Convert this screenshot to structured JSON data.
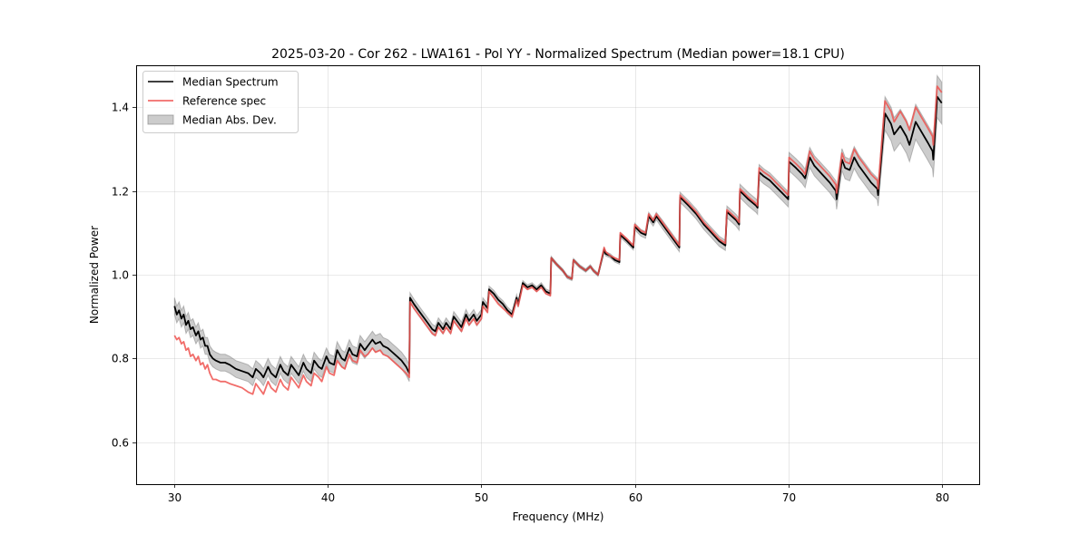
{
  "chart_data": {
    "type": "line",
    "title": "2025-03-20 - Cor 262 - LWA161 - Pol YY - Normalized Spectrum (Median power=18.1 CPU)",
    "xlabel": "Frequency (MHz)",
    "ylabel": "Normalized Power",
    "xlim": [
      27.5,
      82.5
    ],
    "ylim": [
      0.5,
      1.5
    ],
    "xticks": [
      30,
      40,
      50,
      60,
      70,
      80
    ],
    "xtick_labels": [
      "30",
      "40",
      "50",
      "60",
      "70",
      "80"
    ],
    "yticks": [
      0.6,
      0.8,
      1.0,
      1.2,
      1.4
    ],
    "ytick_labels": [
      "0.6",
      "0.8",
      "1.0",
      "1.2",
      "1.4"
    ],
    "grid": true,
    "legend": {
      "placement": "top-left",
      "entries": [
        {
          "label": "Median Spectrum",
          "kind": "line",
          "color": "#000000"
        },
        {
          "label": "Reference spec",
          "kind": "line",
          "color": "#e8393b"
        },
        {
          "label": "Median Abs. Dev.",
          "kind": "band",
          "color": "#b0b0b0"
        }
      ]
    },
    "colors": {
      "median": "#000000",
      "reference": "#ef5350",
      "band_fill": "#000000",
      "band_edge": "#7f7f7f"
    },
    "x": [
      30.0,
      30.15,
      30.3,
      30.45,
      30.6,
      30.75,
      30.9,
      31.05,
      31.2,
      31.4,
      31.55,
      31.7,
      31.85,
      32.0,
      32.15,
      32.3,
      32.5,
      32.7,
      33.0,
      33.3,
      33.6,
      34.0,
      34.4,
      34.8,
      35.1,
      35.3,
      35.6,
      35.8,
      36.1,
      36.3,
      36.6,
      36.9,
      37.1,
      37.4,
      37.6,
      37.9,
      38.1,
      38.4,
      38.6,
      38.9,
      39.1,
      39.4,
      39.6,
      39.9,
      40.1,
      40.4,
      40.6,
      40.9,
      41.1,
      41.4,
      41.6,
      41.9,
      42.1,
      42.4,
      42.6,
      42.9,
      43.1,
      43.4,
      43.6,
      43.9,
      44.2,
      44.5,
      44.8,
      45.1,
      45.3,
      45.35,
      45.6,
      45.9,
      46.2,
      46.5,
      46.8,
      47.0,
      47.2,
      47.5,
      47.7,
      48.0,
      48.2,
      48.5,
      48.7,
      49.0,
      49.2,
      49.5,
      49.7,
      50.0,
      50.1,
      50.4,
      50.5,
      50.8,
      51.1,
      51.4,
      51.7,
      52.0,
      52.3,
      52.4,
      52.7,
      53.0,
      53.3,
      53.6,
      53.9,
      54.2,
      54.5,
      54.55,
      54.9,
      55.3,
      55.6,
      55.9,
      56.0,
      56.4,
      56.8,
      57.1,
      57.3,
      57.6,
      58.0,
      58.1,
      58.4,
      58.7,
      59.0,
      59.05,
      59.5,
      59.9,
      60.0,
      60.4,
      60.7,
      60.9,
      61.2,
      61.4,
      61.8,
      62.3,
      62.9,
      62.95,
      63.5,
      64.0,
      64.5,
      65.0,
      65.5,
      65.9,
      66.0,
      66.3,
      66.6,
      66.8,
      66.85,
      67.4,
      67.9,
      68.0,
      68.1,
      68.4,
      68.8,
      69.2,
      69.6,
      70.0,
      70.05,
      70.5,
      70.9,
      71.1,
      71.4,
      71.7,
      72.2,
      72.7,
      73.1,
      73.15,
      73.5,
      73.7,
      74.0,
      74.3,
      74.6,
      75.0,
      75.4,
      75.8,
      75.85,
      76.3,
      76.7,
      76.9,
      77.3,
      77.7,
      77.9,
      78.3,
      78.7,
      79.1,
      79.4,
      79.45,
      79.7,
      80.0
    ],
    "series": [
      {
        "name": "Median Spectrum",
        "values": [
          0.925,
          0.905,
          0.915,
          0.895,
          0.905,
          0.88,
          0.89,
          0.87,
          0.875,
          0.855,
          0.865,
          0.845,
          0.85,
          0.83,
          0.83,
          0.81,
          0.8,
          0.795,
          0.79,
          0.79,
          0.785,
          0.775,
          0.77,
          0.765,
          0.755,
          0.775,
          0.765,
          0.755,
          0.78,
          0.765,
          0.755,
          0.785,
          0.77,
          0.76,
          0.785,
          0.77,
          0.76,
          0.79,
          0.775,
          0.765,
          0.795,
          0.78,
          0.775,
          0.805,
          0.79,
          0.785,
          0.82,
          0.8,
          0.795,
          0.825,
          0.81,
          0.805,
          0.835,
          0.82,
          0.83,
          0.845,
          0.835,
          0.84,
          0.83,
          0.825,
          0.815,
          0.805,
          0.795,
          0.78,
          0.765,
          0.945,
          0.93,
          0.915,
          0.9,
          0.885,
          0.87,
          0.865,
          0.885,
          0.87,
          0.885,
          0.87,
          0.9,
          0.885,
          0.875,
          0.905,
          0.89,
          0.905,
          0.89,
          0.905,
          0.935,
          0.92,
          0.965,
          0.955,
          0.94,
          0.93,
          0.915,
          0.905,
          0.945,
          0.93,
          0.98,
          0.97,
          0.975,
          0.965,
          0.975,
          0.96,
          0.955,
          1.04,
          1.025,
          1.01,
          0.995,
          0.99,
          1.035,
          1.02,
          1.01,
          1.02,
          1.01,
          1.0,
          1.06,
          1.05,
          1.045,
          1.035,
          1.03,
          1.095,
          1.08,
          1.065,
          1.115,
          1.1,
          1.095,
          1.14,
          1.125,
          1.14,
          1.12,
          1.095,
          1.065,
          1.185,
          1.165,
          1.145,
          1.12,
          1.1,
          1.08,
          1.07,
          1.15,
          1.14,
          1.13,
          1.12,
          1.2,
          1.18,
          1.165,
          1.16,
          1.245,
          1.235,
          1.225,
          1.21,
          1.195,
          1.18,
          1.27,
          1.255,
          1.24,
          1.23,
          1.28,
          1.26,
          1.24,
          1.22,
          1.2,
          1.18,
          1.275,
          1.255,
          1.25,
          1.28,
          1.26,
          1.24,
          1.22,
          1.205,
          1.19,
          1.385,
          1.36,
          1.335,
          1.355,
          1.33,
          1.31,
          1.365,
          1.34,
          1.315,
          1.295,
          1.275,
          1.425,
          1.41,
          1.38
        ]
      },
      {
        "name": "Reference spec",
        "values": [
          0.855,
          0.845,
          0.85,
          0.835,
          0.84,
          0.82,
          0.825,
          0.805,
          0.81,
          0.795,
          0.805,
          0.785,
          0.79,
          0.775,
          0.785,
          0.765,
          0.75,
          0.75,
          0.745,
          0.745,
          0.74,
          0.735,
          0.73,
          0.72,
          0.715,
          0.74,
          0.725,
          0.715,
          0.745,
          0.73,
          0.72,
          0.75,
          0.735,
          0.725,
          0.755,
          0.74,
          0.73,
          0.76,
          0.745,
          0.735,
          0.765,
          0.755,
          0.745,
          0.78,
          0.765,
          0.76,
          0.795,
          0.78,
          0.775,
          0.81,
          0.795,
          0.79,
          0.82,
          0.805,
          0.81,
          0.825,
          0.815,
          0.82,
          0.81,
          0.805,
          0.795,
          0.785,
          0.775,
          0.765,
          0.755,
          0.935,
          0.92,
          0.905,
          0.89,
          0.875,
          0.86,
          0.855,
          0.875,
          0.86,
          0.875,
          0.86,
          0.89,
          0.875,
          0.865,
          0.895,
          0.88,
          0.895,
          0.88,
          0.895,
          0.925,
          0.91,
          0.96,
          0.945,
          0.93,
          0.92,
          0.91,
          0.9,
          0.94,
          0.925,
          0.975,
          0.965,
          0.97,
          0.96,
          0.97,
          0.955,
          0.95,
          1.04,
          1.025,
          1.01,
          0.995,
          0.99,
          1.035,
          1.02,
          1.01,
          1.02,
          1.01,
          1.0,
          1.065,
          1.055,
          1.045,
          1.04,
          1.035,
          1.1,
          1.085,
          1.07,
          1.12,
          1.105,
          1.1,
          1.145,
          1.13,
          1.145,
          1.125,
          1.1,
          1.07,
          1.19,
          1.17,
          1.15,
          1.125,
          1.105,
          1.085,
          1.075,
          1.155,
          1.145,
          1.135,
          1.125,
          1.205,
          1.185,
          1.17,
          1.165,
          1.255,
          1.245,
          1.235,
          1.22,
          1.205,
          1.19,
          1.28,
          1.265,
          1.25,
          1.24,
          1.295,
          1.275,
          1.255,
          1.235,
          1.215,
          1.195,
          1.29,
          1.27,
          1.265,
          1.3,
          1.28,
          1.26,
          1.24,
          1.225,
          1.205,
          1.415,
          1.39,
          1.365,
          1.39,
          1.365,
          1.345,
          1.4,
          1.375,
          1.35,
          1.33,
          1.31,
          1.45,
          1.435,
          1.405
        ]
      }
    ],
    "band": {
      "name": "Median Abs. Dev.",
      "about": "series 0",
      "halfwidth": [
        0.02,
        0.02,
        0.02,
        0.02,
        0.02,
        0.02,
        0.02,
        0.02,
        0.02,
        0.02,
        0.02,
        0.02,
        0.02,
        0.02,
        0.02,
        0.02,
        0.02,
        0.02,
        0.02,
        0.02,
        0.02,
        0.02,
        0.02,
        0.02,
        0.02,
        0.02,
        0.02,
        0.02,
        0.02,
        0.02,
        0.02,
        0.02,
        0.02,
        0.02,
        0.02,
        0.02,
        0.02,
        0.02,
        0.02,
        0.02,
        0.02,
        0.02,
        0.02,
        0.02,
        0.02,
        0.02,
        0.02,
        0.02,
        0.02,
        0.02,
        0.02,
        0.02,
        0.02,
        0.02,
        0.02,
        0.02,
        0.02,
        0.02,
        0.02,
        0.02,
        0.02,
        0.02,
        0.02,
        0.02,
        0.02,
        0.012,
        0.012,
        0.012,
        0.012,
        0.012,
        0.012,
        0.012,
        0.012,
        0.012,
        0.012,
        0.012,
        0.012,
        0.012,
        0.012,
        0.012,
        0.012,
        0.012,
        0.012,
        0.012,
        0.01,
        0.01,
        0.008,
        0.008,
        0.008,
        0.008,
        0.008,
        0.008,
        0.008,
        0.008,
        0.006,
        0.006,
        0.006,
        0.006,
        0.006,
        0.006,
        0.006,
        0.004,
        0.004,
        0.004,
        0.004,
        0.004,
        0.004,
        0.004,
        0.004,
        0.004,
        0.004,
        0.004,
        0.005,
        0.005,
        0.005,
        0.005,
        0.005,
        0.006,
        0.006,
        0.006,
        0.008,
        0.008,
        0.008,
        0.009,
        0.009,
        0.009,
        0.01,
        0.01,
        0.01,
        0.012,
        0.012,
        0.012,
        0.012,
        0.012,
        0.012,
        0.012,
        0.014,
        0.014,
        0.014,
        0.014,
        0.016,
        0.016,
        0.016,
        0.016,
        0.018,
        0.018,
        0.018,
        0.018,
        0.018,
        0.018,
        0.022,
        0.022,
        0.022,
        0.022,
        0.024,
        0.024,
        0.024,
        0.024,
        0.024,
        0.024,
        0.026,
        0.026,
        0.026,
        0.026,
        0.026,
        0.026,
        0.026,
        0.026,
        0.026,
        0.04,
        0.04,
        0.04,
        0.04,
        0.04,
        0.04,
        0.042,
        0.042,
        0.042,
        0.042,
        0.042,
        0.05,
        0.05,
        0.05
      ]
    }
  }
}
